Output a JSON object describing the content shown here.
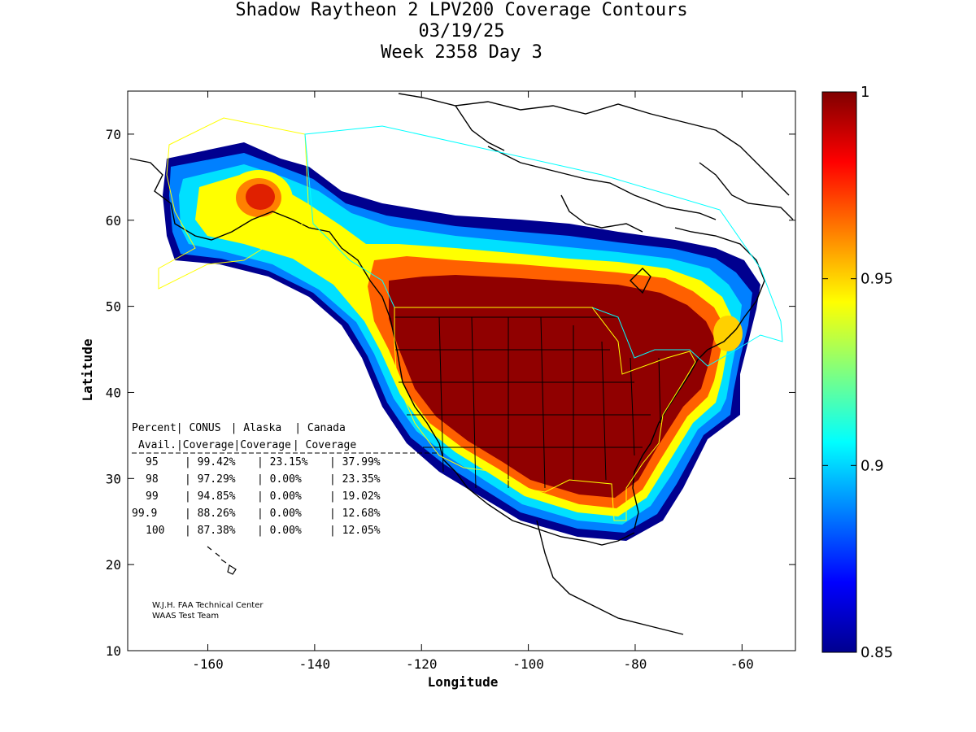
{
  "title": {
    "line1": "Shadow Raytheon 2 LPV200 Coverage Contours",
    "line2": "03/19/25",
    "line3": "Week 2358 Day 3"
  },
  "axes": {
    "xlabel": "Longitude",
    "ylabel": "Latitude",
    "xticks": [
      "-160",
      "-140",
      "-120",
      "-100",
      "-80",
      "-60"
    ],
    "yticks": [
      "10",
      "20",
      "30",
      "40",
      "50",
      "60",
      "70"
    ]
  },
  "colorbar": {
    "ticks": [
      "1",
      "0.95",
      "0.9",
      "0.85"
    ]
  },
  "stats_table": {
    "header1": [
      "Percent",
      "| CONUS",
      "| Alaska",
      "| Canada"
    ],
    "header2": [
      "Avail.",
      "|Coverage",
      "|Coverage",
      "| Coverage"
    ],
    "rows": [
      [
        "95",
        "| 99.42%",
        "| 23.15%",
        "| 37.99%"
      ],
      [
        "98",
        "| 97.29%",
        "| 0.00%",
        "| 23.35%"
      ],
      [
        "99",
        "| 94.85%",
        "| 0.00%",
        "| 19.02%"
      ],
      [
        "99.9",
        "| 88.26%",
        "| 0.00%",
        "| 12.68%"
      ],
      [
        "100",
        "| 87.38%",
        "| 0.00%",
        "| 12.05%"
      ]
    ]
  },
  "credits": {
    "line1": "W.J.H. FAA Technical Center",
    "line2": "WAAS Test Team"
  },
  "chart_data": {
    "type": "heatmap",
    "title": "Shadow Raytheon 2 LPV200 Coverage Contours",
    "xlabel": "Longitude",
    "ylabel": "Latitude",
    "xlim": [
      -175,
      -50
    ],
    "ylim": [
      10,
      75
    ],
    "color_scale": {
      "min": 0.85,
      "max": 1,
      "colormap": "jet"
    },
    "coverage_summary": [
      {
        "avail": "95",
        "conus": "99.42%",
        "alaska": "23.15%",
        "canada": "37.99%"
      },
      {
        "avail": "98",
        "conus": "97.29%",
        "alaska": "0.00%",
        "canada": "23.35%"
      },
      {
        "avail": "99",
        "conus": "94.85%",
        "alaska": "0.00%",
        "canada": "19.02%"
      },
      {
        "avail": "99.9",
        "conus": "88.26%",
        "alaska": "0.00%",
        "canada": "12.68%"
      },
      {
        "avail": "100",
        "conus": "87.38%",
        "alaska": "0.00%",
        "canada": "12.05%"
      }
    ]
  }
}
